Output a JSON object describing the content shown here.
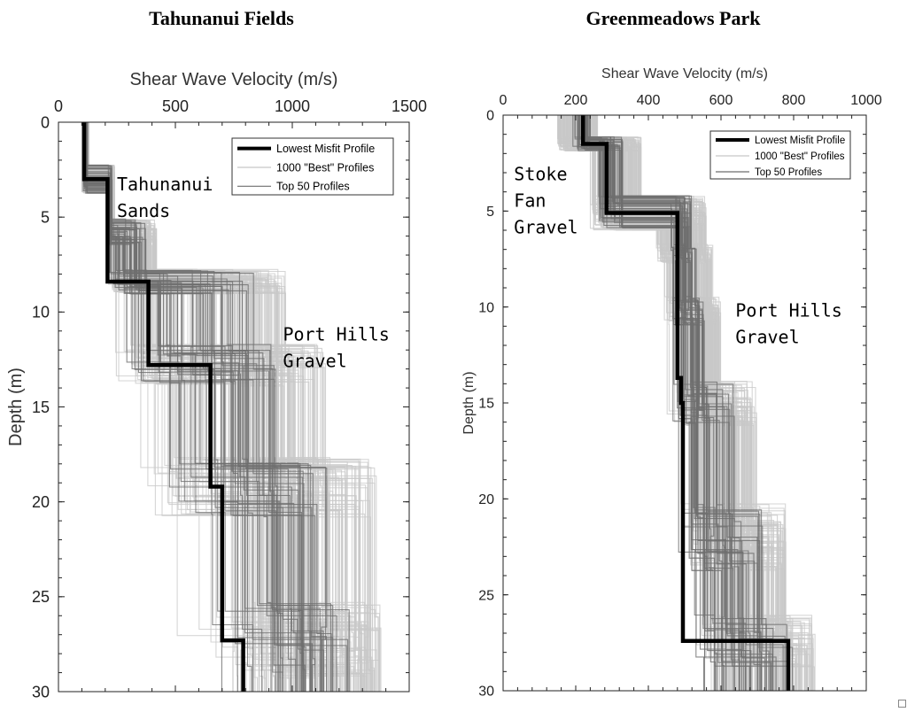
{
  "figure": {
    "left_title": "Tahunanui Fields",
    "right_title": "Greenmeadows Park"
  },
  "colors": {
    "lowest": "#000000",
    "best": "#c8c8c8",
    "top50": "#6e6e6e",
    "axis": "#222222"
  },
  "chart_data": [
    {
      "type": "line",
      "title": "Tahunanui Fields",
      "xlabel": "Shear Wave Velocity (m/s)",
      "ylabel": "Depth (m)",
      "xlim": [
        0,
        1500
      ],
      "ylim": [
        30,
        0
      ],
      "x_axis_position": "top",
      "y_reversed": true,
      "xticks": [
        0,
        500,
        1000,
        1500
      ],
      "xtick_labels": [
        "0",
        "500",
        "1000",
        "1500"
      ],
      "yticks": [
        0,
        5,
        10,
        15,
        20,
        25,
        30
      ],
      "ytick_labels": [
        "0",
        "5",
        "10",
        "15",
        "20",
        "25",
        "30"
      ],
      "grid": false,
      "legend": {
        "placement": "top-right",
        "entries": [
          "Lowest Misfit Profile",
          "1000 \"Best\" Profiles",
          "Top 50 Profiles"
        ]
      },
      "annotations": [
        {
          "lines": [
            "Tahunanui",
            "Sands"
          ],
          "x": 250,
          "y": 3.6
        },
        {
          "lines": [
            "Port Hills",
            "Gravel"
          ],
          "x": 960,
          "y": 11.5
        }
      ],
      "series": [
        {
          "name": "Lowest Misfit Profile",
          "velocity": [
            110,
            110,
            210,
            210,
            385,
            385,
            650,
            650,
            700,
            700,
            790,
            790
          ],
          "depth": [
            0,
            3.0,
            3.0,
            8.4,
            8.4,
            12.8,
            12.8,
            19.2,
            19.2,
            27.3,
            27.3,
            30
          ]
        }
      ],
      "profile_bands": {
        "best_count": 1000,
        "top50_count": 50,
        "layers": [
          {
            "top": 0,
            "bottom": 3.0,
            "best_min": 100,
            "best_max": 130,
            "top50_min": 105,
            "top50_max": 125
          },
          {
            "top": 3.0,
            "bottom": 5.8,
            "best_min": 205,
            "best_max": 240,
            "top50_min": 208,
            "top50_max": 230
          },
          {
            "top": 5.8,
            "bottom": 8.4,
            "best_min": 210,
            "best_max": 420,
            "top50_min": 215,
            "top50_max": 380
          },
          {
            "top": 8.4,
            "bottom": 12.8,
            "best_min": 220,
            "best_max": 980,
            "top50_min": 260,
            "top50_max": 850
          },
          {
            "top": 12.8,
            "bottom": 19.2,
            "best_min": 330,
            "best_max": 1150,
            "top50_min": 450,
            "top50_max": 950
          },
          {
            "top": 19.2,
            "bottom": 27.3,
            "best_min": 500,
            "best_max": 1360,
            "top50_min": 560,
            "top50_max": 1150
          },
          {
            "top": 27.3,
            "bottom": 30,
            "best_min": 520,
            "best_max": 1380,
            "top50_min": 600,
            "top50_max": 1250
          }
        ]
      }
    },
    {
      "type": "line",
      "title": "Greenmeadows Park",
      "xlabel": "Shear Wave Velocity (m/s)",
      "ylabel": "Depth (m)",
      "xlim": [
        0,
        1000
      ],
      "ylim": [
        30,
        0
      ],
      "x_axis_position": "top",
      "y_reversed": true,
      "xticks": [
        0,
        200,
        400,
        600,
        800,
        1000
      ],
      "xtick_labels": [
        "0",
        "200",
        "400",
        "600",
        "800",
        "1000"
      ],
      "yticks": [
        0,
        5,
        10,
        15,
        20,
        25,
        30
      ],
      "ytick_labels": [
        "0",
        "5",
        "10",
        "15",
        "20",
        "25",
        "30"
      ],
      "grid": false,
      "legend": {
        "placement": "top-right",
        "entries": [
          "Lowest Misfit Profile",
          "1000 \"Best\" Profiles",
          "Top 50 Profiles"
        ]
      },
      "annotations": [
        {
          "lines": [
            "Stoke",
            "Fan",
            "Gravel"
          ],
          "x": 30,
          "y": 3.4
        },
        {
          "lines": [
            "Port Hills",
            "Gravel"
          ],
          "x": 640,
          "y": 10.5
        }
      ],
      "series": [
        {
          "name": "Lowest Misfit Profile",
          "velocity": [
            220,
            220,
            285,
            285,
            480,
            480,
            490,
            490,
            495,
            495,
            785,
            785
          ],
          "depth": [
            0,
            1.5,
            1.5,
            5.1,
            5.1,
            13.7,
            13.7,
            15.0,
            15.0,
            27.4,
            27.4,
            30
          ]
        }
      ],
      "profile_bands": {
        "best_count": 1000,
        "top50_count": 50,
        "layers": [
          {
            "top": 0,
            "bottom": 1.5,
            "best_min": 150,
            "best_max": 260,
            "top50_min": 190,
            "top50_max": 240
          },
          {
            "top": 1.5,
            "bottom": 5.1,
            "best_min": 240,
            "best_max": 380,
            "top50_min": 260,
            "top50_max": 330
          },
          {
            "top": 5.1,
            "bottom": 7.2,
            "best_min": 420,
            "best_max": 560,
            "top50_min": 460,
            "top50_max": 520
          },
          {
            "top": 7.2,
            "bottom": 10.2,
            "best_min": 440,
            "best_max": 540,
            "top50_min": 465,
            "top50_max": 505
          },
          {
            "top": 10.2,
            "bottom": 15.0,
            "best_min": 440,
            "best_max": 600,
            "top50_min": 460,
            "top50_max": 560
          },
          {
            "top": 15.0,
            "bottom": 22.0,
            "best_min": 455,
            "best_max": 700,
            "top50_min": 480,
            "top50_max": 640
          },
          {
            "top": 22.0,
            "bottom": 27.4,
            "best_min": 470,
            "best_max": 780,
            "top50_min": 490,
            "top50_max": 720
          },
          {
            "top": 27.4,
            "bottom": 30,
            "best_min": 470,
            "best_max": 860,
            "top50_min": 500,
            "top50_max": 820
          }
        ]
      }
    }
  ]
}
